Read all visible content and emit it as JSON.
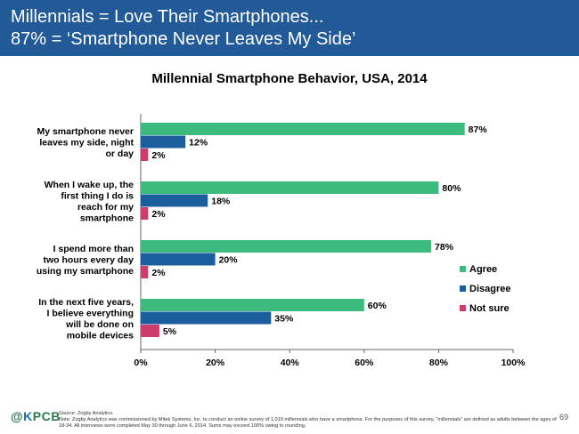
{
  "header": {
    "line1": "Millennials = Love Their Smartphones...",
    "line2": "87% = ‘Smartphone Never Leaves My Side’"
  },
  "chart_data": {
    "type": "bar",
    "orientation": "horizontal",
    "title": "Millennial Smartphone Behavior, USA, 2014",
    "categories": [
      [
        "My smartphone never",
        "leaves my side, night",
        "or day"
      ],
      [
        "When I wake up, the",
        "first thing I do is",
        "reach for my",
        "smartphone"
      ],
      [
        "I spend more than",
        "two hours every day",
        "using my smartphone"
      ],
      [
        "In the next five years,",
        "I believe everything",
        "will be done on",
        "mobile devices"
      ]
    ],
    "series": [
      {
        "name": "Agree",
        "color": "#3dba7e",
        "values": [
          87,
          80,
          78,
          60
        ]
      },
      {
        "name": "Disagree",
        "color": "#1b5e9e",
        "values": [
          12,
          18,
          20,
          35
        ]
      },
      {
        "name": "Not sure",
        "color": "#cc3d6b",
        "values": [
          2,
          2,
          2,
          5
        ]
      }
    ],
    "xlim": [
      0,
      100
    ],
    "xticks": [
      0,
      20,
      40,
      60,
      80,
      100
    ],
    "xtick_labels": [
      "0%",
      "20%",
      "40%",
      "60%",
      "80%",
      "100%"
    ],
    "value_suffix": "%",
    "legend_position": "right",
    "grid": false
  },
  "footer": {
    "logo_at": "@",
    "logo_k": "K",
    "logo_rest": "PCB",
    "source": "Source: Zogby Analytics.",
    "note": "Note: Zogby Analytics was commissioned by Mitek Systems, Inc. to conduct an online survey of 1,019 millennials who have a smartphone. For the purposes of this survey, “millennials” are defined as adults between the ages of 18-34. All interviews were completed May 30 through June 6, 2014. Sums may exceed 100% owing to rounding.",
    "page_number": "69"
  }
}
